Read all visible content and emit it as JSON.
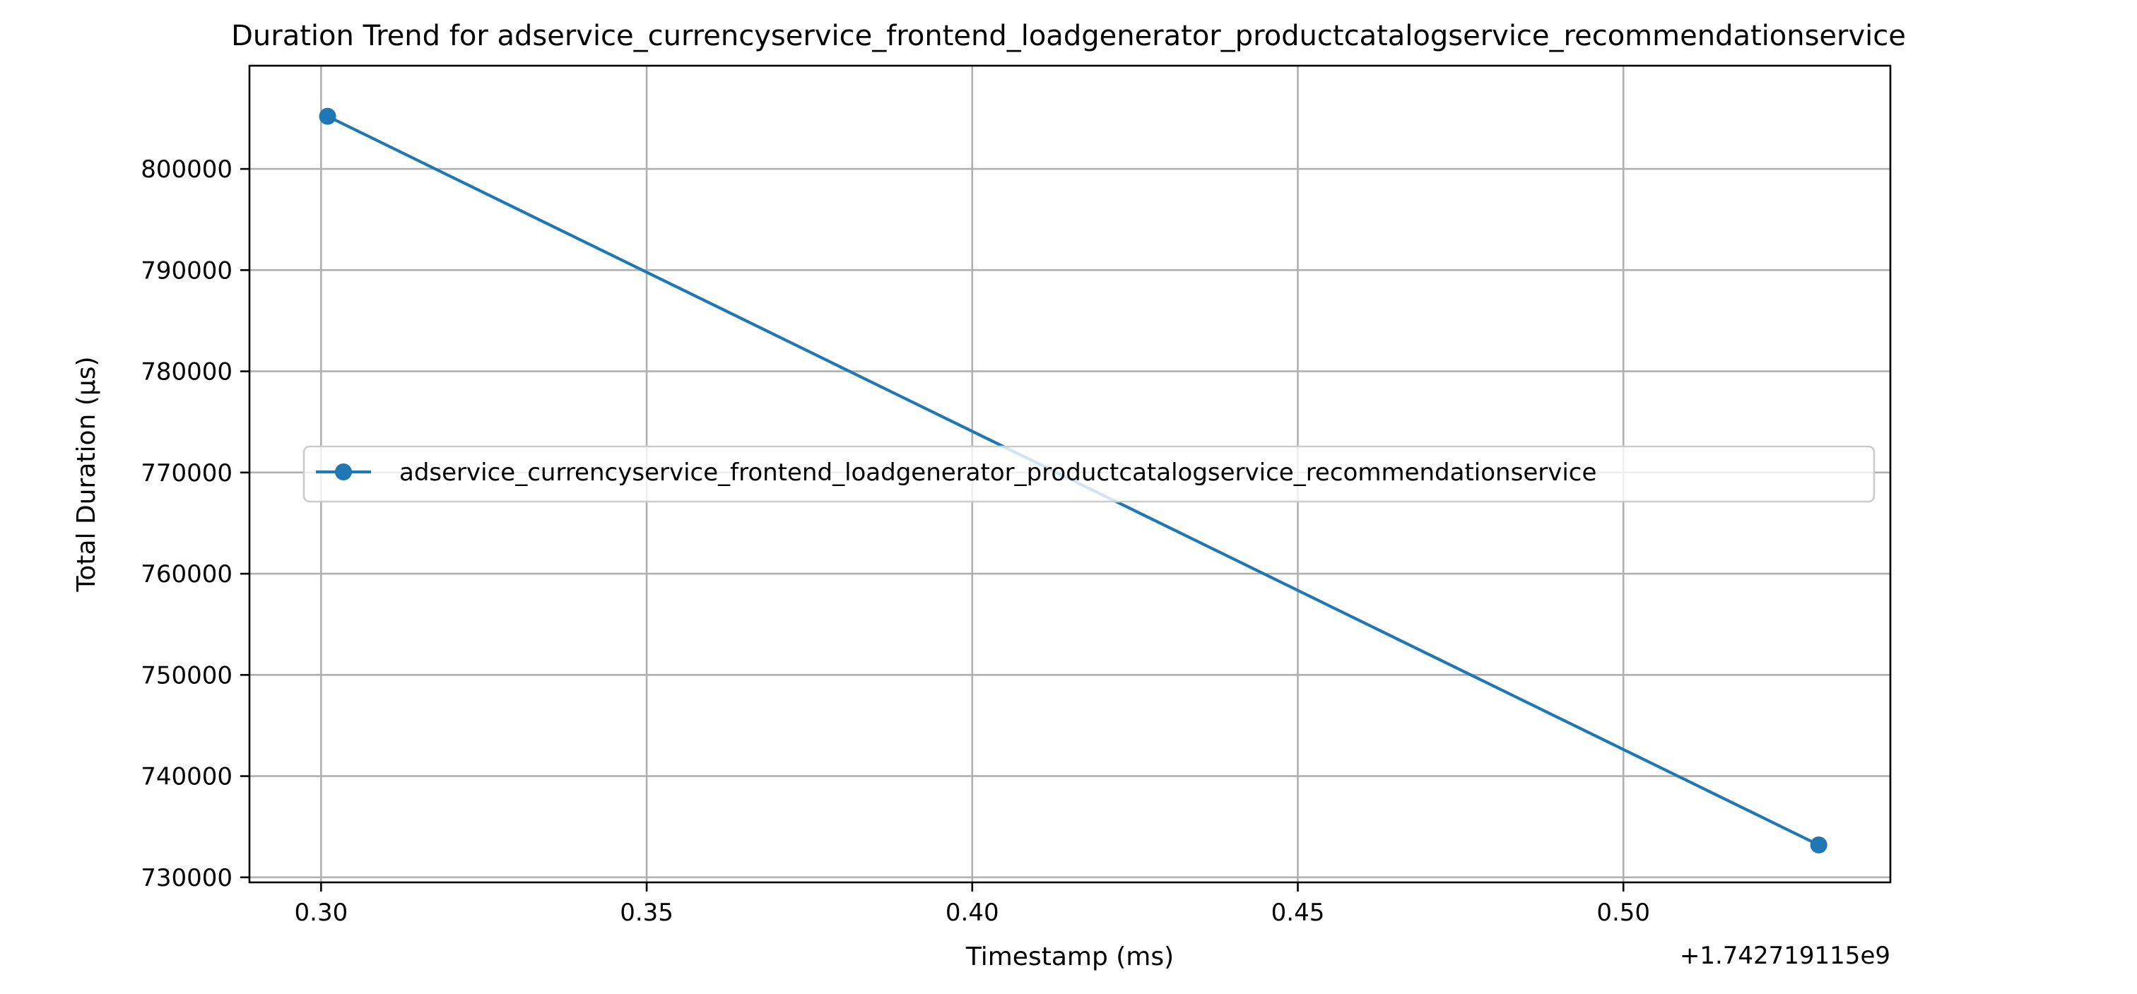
{
  "chart_data": {
    "type": "line",
    "title": "Duration Trend for adservice_currencyservice_frontend_loadgenerator_productcatalogservice_recommendationservice",
    "xlabel": "Timestamp (ms)",
    "ylabel": "Total Duration (µs)",
    "x_offset_label": "+1.742719115e9",
    "xlim": [
      0.289,
      0.541
    ],
    "ylim": [
      729500,
      810200
    ],
    "x_ticks": [
      0.3,
      0.35,
      0.4,
      0.45,
      0.5
    ],
    "x_tick_labels": [
      "0.30",
      "0.35",
      "0.40",
      "0.45",
      "0.50"
    ],
    "y_ticks": [
      730000,
      740000,
      750000,
      760000,
      770000,
      780000,
      790000,
      800000
    ],
    "y_tick_labels": [
      "730000",
      "740000",
      "750000",
      "760000",
      "770000",
      "780000",
      "790000",
      "800000"
    ],
    "grid": true,
    "legend_position": "center-left",
    "series": [
      {
        "name": "adservice_currencyservice_frontend_loadgenerator_productcatalogservice_recommendationservice",
        "color": "#1f77b4",
        "marker": "circle",
        "x": [
          0.301,
          0.53
        ],
        "y": [
          805200,
          733200
        ]
      }
    ]
  }
}
